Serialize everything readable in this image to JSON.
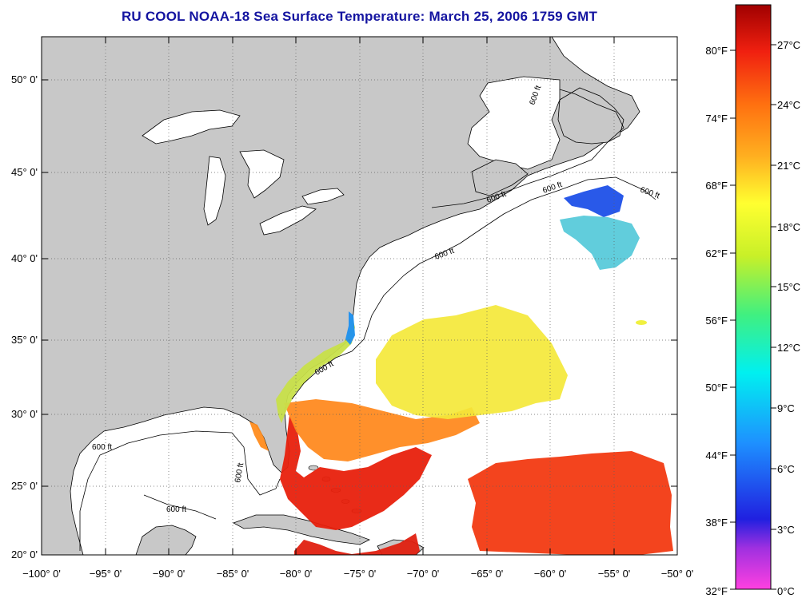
{
  "title": "RU COOL  NOAA-18  Sea Surface Temperature:  March 25, 2006 1759 GMT",
  "lat_labels": [
    "50° 0'",
    "45° 0'",
    "40° 0'",
    "35° 0'",
    "30° 0'",
    "25° 0'",
    "20° 0'"
  ],
  "lon_labels": [
    "−100° 0'",
    "−95° 0'",
    "−90° 0'",
    "−85° 0'",
    "−80° 0'",
    "−75° 0'",
    "−70° 0'",
    "−65° 0'",
    "−60° 0'",
    "−55° 0'",
    "−50° 0'"
  ],
  "contour_label": "600 ft",
  "colorbar": {
    "fahrenheit": [
      "80°F",
      "74°F",
      "68°F",
      "62°F",
      "56°F",
      "50°F",
      "44°F",
      "38°F",
      "32°F"
    ],
    "celsius": [
      "27°C",
      "24°C",
      "21°C",
      "18°C",
      "15°C",
      "12°C",
      "9°C",
      "6°C",
      "3°C",
      "0°C"
    ]
  },
  "colors": {
    "land": "#c8c8c8",
    "ocean": "#ffffff",
    "title": "#1414a0",
    "warm": "#e8200c",
    "mid": "#ff8c1e",
    "cool": "#f4f03c",
    "cold": "#1e78f0"
  }
}
